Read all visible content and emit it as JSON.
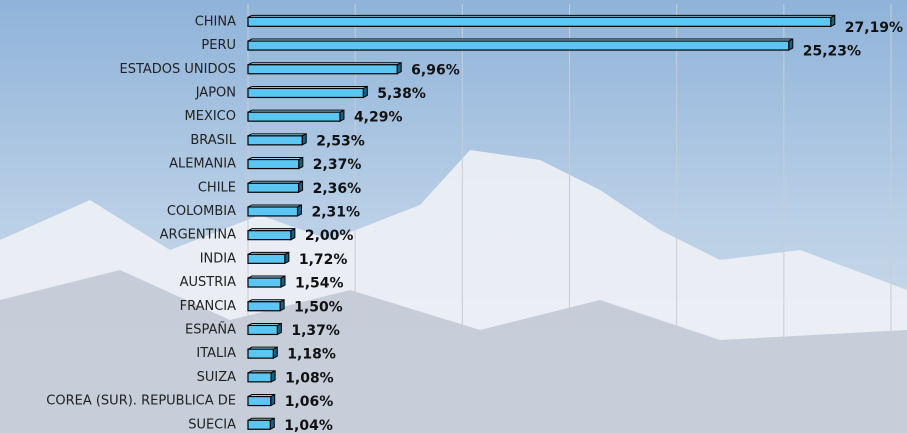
{
  "chart_data": {
    "type": "hbar",
    "categories": [
      "CHINA",
      "PERU",
      "ESTADOS UNIDOS",
      "JAPON",
      "MEXICO",
      "BRASIL",
      "ALEMANIA",
      "CHILE",
      "COLOMBIA",
      "ARGENTINA",
      "INDIA",
      "AUSTRIA",
      "FRANCIA",
      "ESPAÑA",
      "ITALIA",
      "SUIZA",
      "COREA (SUR). REPUBLICA DE",
      "SUECIA"
    ],
    "values": [
      27.19,
      25.23,
      6.96,
      5.38,
      4.29,
      2.53,
      2.37,
      2.36,
      2.31,
      2.0,
      1.72,
      1.54,
      1.5,
      1.37,
      1.18,
      1.08,
      1.06,
      1.04
    ],
    "value_labels": [
      "27,19%",
      "25,23%",
      "6,96%",
      "5,38%",
      "4,29%",
      "2,53%",
      "2,37%",
      "2,36%",
      "2,31%",
      "2,00%",
      "1,72%",
      "1,54%",
      "1,50%",
      "1,37%",
      "1,18%",
      "1,08%",
      "1,06%",
      "1,04%"
    ],
    "color": "#5cc6f2",
    "xlim": [
      0,
      30
    ],
    "xticks": [
      0,
      5,
      10,
      15,
      20,
      25,
      30
    ],
    "grid": true
  }
}
